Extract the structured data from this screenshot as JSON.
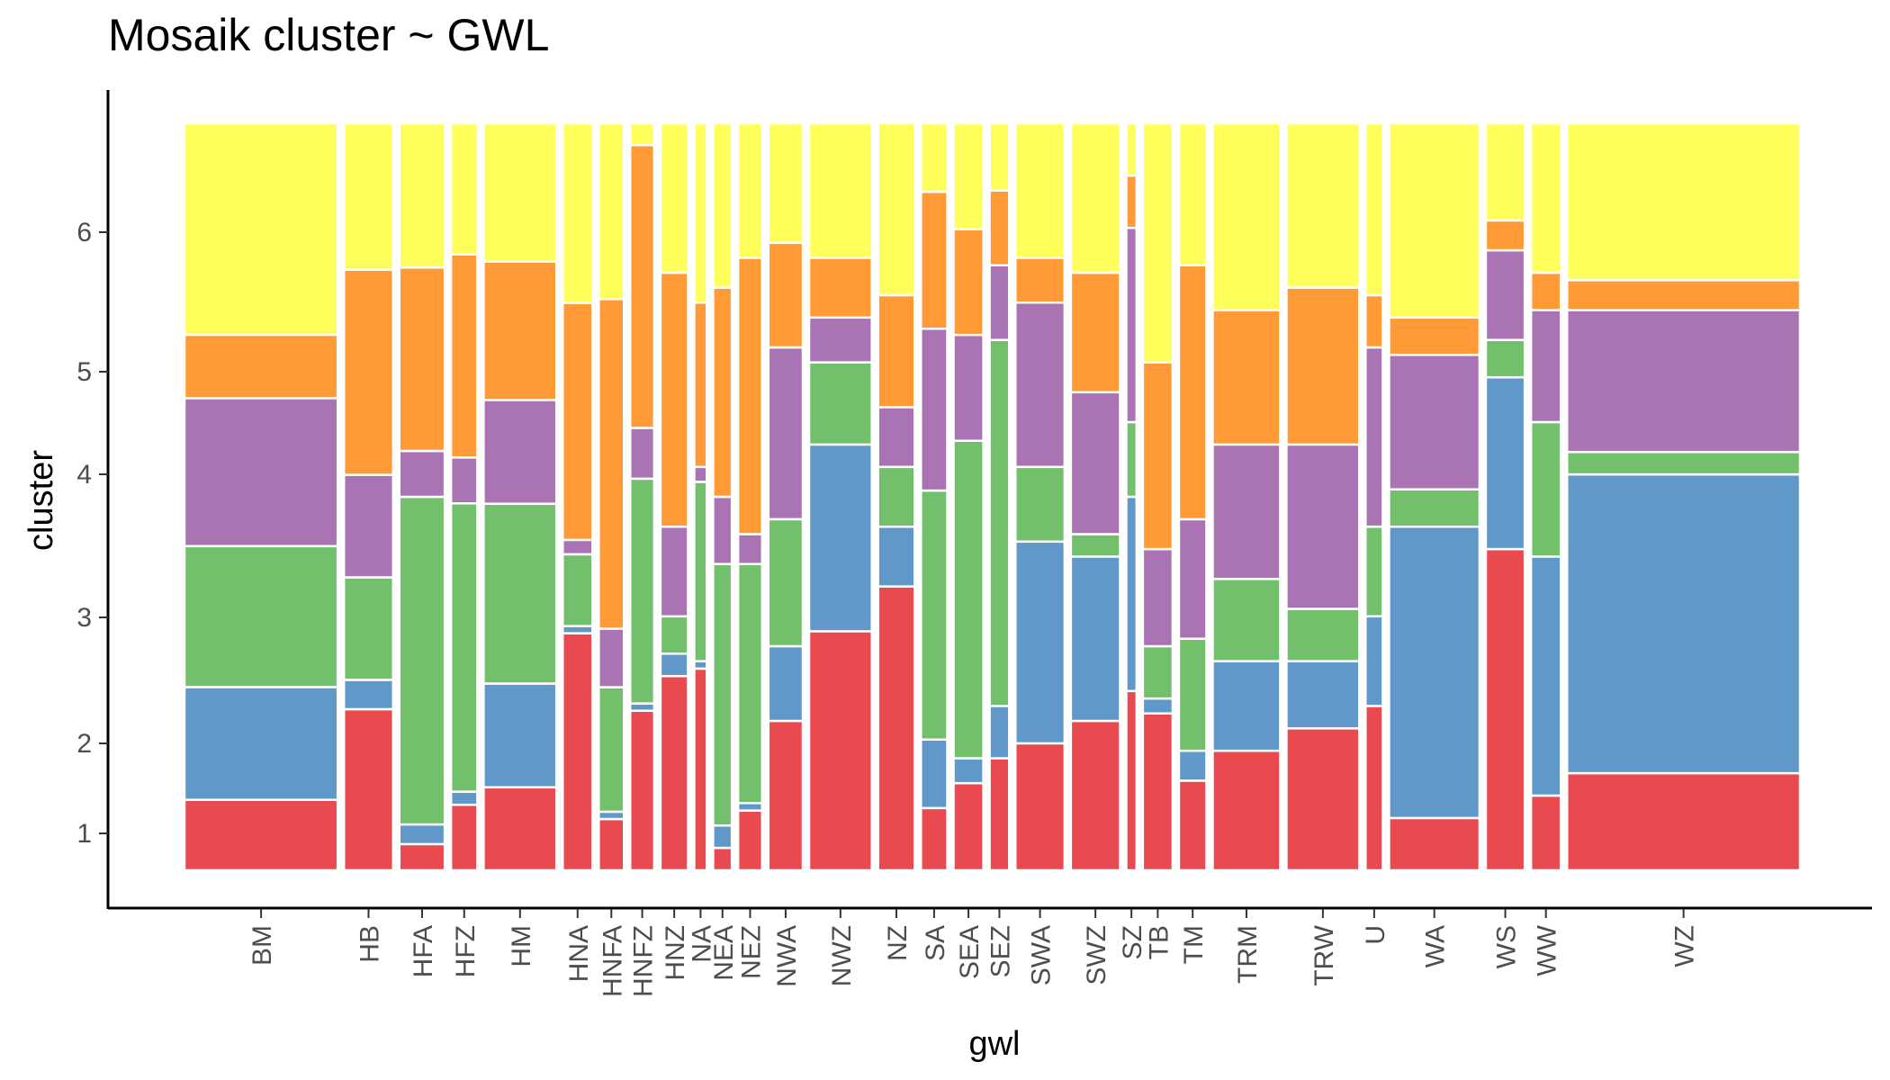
{
  "chart_data": {
    "type": "mosaic",
    "title": "Mosaik cluster ~ GWL",
    "xlabel": "gwl",
    "ylabel": "cluster",
    "y_ticks": [
      "1",
      "2",
      "3",
      "4",
      "5",
      "6"
    ],
    "cluster_colors": {
      "1": "#E84A4F",
      "2": "#6098C9",
      "3": "#72BF6C",
      "4": "#AA73B4",
      "5": "#FF9A36",
      "6": "#FFFF5C"
    },
    "categories": [
      {
        "name": "BM",
        "width_share": 0.0926,
        "proportions": [
          0.1,
          0.16,
          0.2,
          0.21,
          0.09,
          0.3
        ]
      },
      {
        "name": "HB",
        "width_share": 0.0297,
        "proportions": [
          0.22,
          0.04,
          0.14,
          0.14,
          0.28,
          0.2
        ]
      },
      {
        "name": "HFA",
        "width_share": 0.0274,
        "proportions": [
          0.04,
          0.03,
          0.5,
          0.07,
          0.28,
          0.22
        ]
      },
      {
        "name": "HFZ",
        "width_share": 0.0159,
        "proportions": [
          0.1,
          0.02,
          0.44,
          0.07,
          0.31,
          0.2
        ]
      },
      {
        "name": "HM",
        "width_share": 0.044,
        "proportions": [
          0.12,
          0.15,
          0.26,
          0.15,
          0.2,
          0.2
        ]
      },
      {
        "name": "HNA",
        "width_share": 0.018,
        "proportions": [
          0.33,
          0.01,
          0.1,
          0.02,
          0.33,
          0.25
        ]
      },
      {
        "name": "HNFA",
        "width_share": 0.0152,
        "proportions": [
          0.07,
          0.01,
          0.17,
          0.08,
          0.45,
          0.24
        ]
      },
      {
        "name": "HNFZ",
        "width_share": 0.0145,
        "proportions": [
          0.22,
          0.01,
          0.31,
          0.07,
          0.39,
          0.03
        ]
      },
      {
        "name": "HNZ",
        "width_share": 0.0166,
        "proportions": [
          0.26,
          0.03,
          0.05,
          0.12,
          0.34,
          0.2
        ]
      },
      {
        "name": "NA",
        "width_share": 0.0076,
        "proportions": [
          0.27,
          0.01,
          0.24,
          0.02,
          0.22,
          0.24
        ]
      },
      {
        "name": "NEA",
        "width_share": 0.0113,
        "proportions": [
          0.03,
          0.03,
          0.35,
          0.09,
          0.28,
          0.22
        ]
      },
      {
        "name": "NEZ",
        "width_share": 0.0145,
        "proportions": [
          0.08,
          0.01,
          0.32,
          0.04,
          0.37,
          0.18
        ]
      },
      {
        "name": "NWA",
        "width_share": 0.0208,
        "proportions": [
          0.2,
          0.1,
          0.17,
          0.23,
          0.14,
          0.16
        ]
      },
      {
        "name": "NWZ",
        "width_share": 0.0379,
        "proportions": [
          0.32,
          0.25,
          0.11,
          0.06,
          0.08,
          0.18
        ]
      },
      {
        "name": "NZ",
        "width_share": 0.0221,
        "proportions": [
          0.38,
          0.08,
          0.08,
          0.08,
          0.15,
          0.23
        ]
      },
      {
        "name": "SA",
        "width_share": 0.0159,
        "proportions": [
          0.1,
          0.11,
          0.4,
          0.26,
          0.22,
          0.11
        ]
      },
      {
        "name": "SEA",
        "width_share": 0.018,
        "proportions": [
          0.14,
          0.04,
          0.51,
          0.17,
          0.17,
          0.17
        ]
      },
      {
        "name": "SEZ",
        "width_share": 0.0118,
        "proportions": [
          0.15,
          0.07,
          0.49,
          0.1,
          0.1,
          0.09
        ]
      },
      {
        "name": "SWA",
        "width_share": 0.0297,
        "proportions": [
          0.17,
          0.27,
          0.1,
          0.22,
          0.06,
          0.18
        ]
      },
      {
        "name": "SWZ",
        "width_share": 0.0297,
        "proportions": [
          0.2,
          0.22,
          0.03,
          0.19,
          0.16,
          0.2
        ]
      },
      {
        "name": "SZ",
        "width_share": 0.0062,
        "proportions": [
          0.24,
          0.26,
          0.1,
          0.26,
          0.07,
          0.07
        ]
      },
      {
        "name": "TB",
        "width_share": 0.018,
        "proportions": [
          0.21,
          0.02,
          0.07,
          0.13,
          0.25,
          0.32
        ]
      },
      {
        "name": "TM",
        "width_share": 0.0166,
        "proportions": [
          0.12,
          0.04,
          0.15,
          0.16,
          0.34,
          0.19
        ]
      },
      {
        "name": "TRM",
        "width_share": 0.0408,
        "proportions": [
          0.16,
          0.12,
          0.11,
          0.18,
          0.18,
          0.25
        ]
      },
      {
        "name": "TRW",
        "width_share": 0.044,
        "proportions": [
          0.19,
          0.09,
          0.07,
          0.22,
          0.21,
          0.22
        ]
      },
      {
        "name": "U",
        "width_share": 0.0104,
        "proportions": [
          0.22,
          0.12,
          0.12,
          0.24,
          0.07,
          0.23
        ]
      },
      {
        "name": "WA",
        "width_share": 0.0547,
        "proportions": [
          0.07,
          0.39,
          0.05,
          0.18,
          0.05,
          0.26
        ]
      },
      {
        "name": "WS",
        "width_share": 0.0235,
        "proportions": [
          0.43,
          0.23,
          0.05,
          0.12,
          0.04,
          0.13
        ]
      },
      {
        "name": "WW",
        "width_share": 0.018,
        "proportions": [
          0.1,
          0.32,
          0.18,
          0.15,
          0.05,
          0.2
        ]
      },
      {
        "name": "WZ",
        "width_share": 0.1408,
        "proportions": [
          0.13,
          0.4,
          0.03,
          0.19,
          0.04,
          0.21
        ]
      }
    ]
  }
}
